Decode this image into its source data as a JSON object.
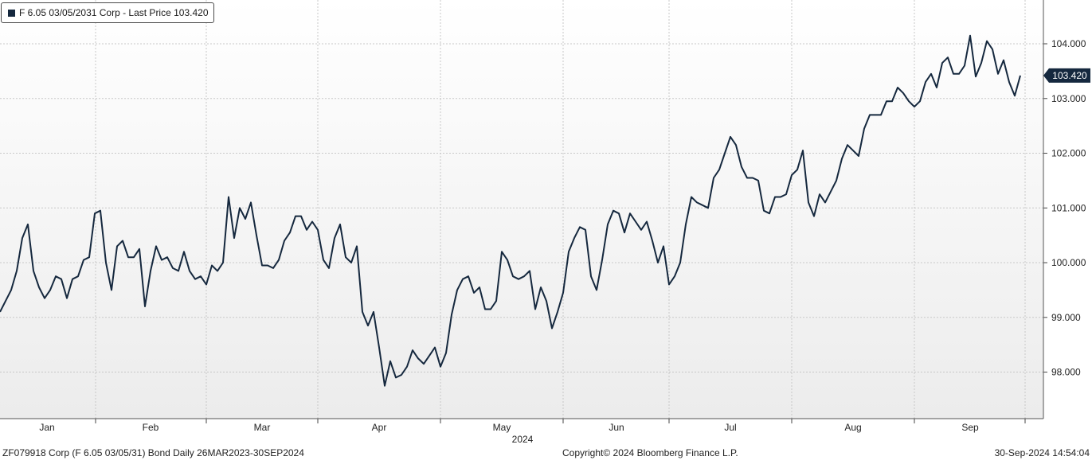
{
  "legend": {
    "label": "F 6.05 03/05/2031 Corp - Last Price 103.420",
    "color": "#15283e"
  },
  "footer": {
    "left": "ZF079918 Corp (F 6.05 03/05/31) Bond  Daily 26MAR2023-30SEP2024",
    "center": "Copyright© 2024 Bloomberg Finance L.P.",
    "right": "30-Sep-2024 14:54:04"
  },
  "chart_data": {
    "type": "line",
    "ylim": [
      97.15,
      104.8
    ],
    "y_ticks": [
      "98.000",
      "99.000",
      "100.000",
      "101.000",
      "102.000",
      "103.000",
      "104.000"
    ],
    "y_tick_values": [
      98,
      99,
      100,
      101,
      102,
      103,
      104
    ],
    "x_month_labels": [
      "Jan",
      "Feb",
      "Mar",
      "Apr",
      "May",
      "Jun",
      "Jul",
      "Aug",
      "Sep"
    ],
    "x_year_label": "2024",
    "grid": true,
    "last_value_label": "103.420",
    "last_value": 103.42,
    "series": [
      {
        "name": "F 6.05 03/05/2031 Corp - Last Price",
        "color": "#15283e",
        "values": [
          99.1,
          99.3,
          99.5,
          99.85,
          100.45,
          100.7,
          99.85,
          99.55,
          99.35,
          99.5,
          99.75,
          99.7,
          99.35,
          99.7,
          99.75,
          100.05,
          100.1,
          100.9,
          100.95,
          100.0,
          99.5,
          100.3,
          100.4,
          100.1,
          100.1,
          100.25,
          99.2,
          99.85,
          100.3,
          100.05,
          100.1,
          99.9,
          99.85,
          100.2,
          99.85,
          99.7,
          99.75,
          99.6,
          99.95,
          99.85,
          100.0,
          101.2,
          100.45,
          101.0,
          100.8,
          101.1,
          100.5,
          99.95,
          99.95,
          99.9,
          100.05,
          100.4,
          100.55,
          100.85,
          100.85,
          100.6,
          100.75,
          100.6,
          100.05,
          99.9,
          100.45,
          100.7,
          100.1,
          100.0,
          100.3,
          99.1,
          98.85,
          99.1,
          98.45,
          97.75,
          98.2,
          97.9,
          97.95,
          98.1,
          98.4,
          98.25,
          98.15,
          98.3,
          98.45,
          98.1,
          98.35,
          99.05,
          99.5,
          99.7,
          99.75,
          99.45,
          99.55,
          99.15,
          99.15,
          99.3,
          100.2,
          100.05,
          99.75,
          99.7,
          99.75,
          99.85,
          99.15,
          99.55,
          99.3,
          98.8,
          99.1,
          99.45,
          100.2,
          100.45,
          100.65,
          100.6,
          99.75,
          99.5,
          100.05,
          100.7,
          100.95,
          100.9,
          100.55,
          100.9,
          100.75,
          100.6,
          100.75,
          100.4,
          100.0,
          100.3,
          99.6,
          99.75,
          100.0,
          100.7,
          101.2,
          101.1,
          101.05,
          101.0,
          101.55,
          101.7,
          102.0,
          102.3,
          102.15,
          101.75,
          101.55,
          101.55,
          101.5,
          100.95,
          100.9,
          101.2,
          101.2,
          101.25,
          101.6,
          101.7,
          102.05,
          101.1,
          100.85,
          101.25,
          101.1,
          101.3,
          101.5,
          101.9,
          102.15,
          102.05,
          101.95,
          102.45,
          102.7,
          102.7,
          102.7,
          102.95,
          102.95,
          103.2,
          103.1,
          102.95,
          102.85,
          102.95,
          103.3,
          103.45,
          103.2,
          103.65,
          103.75,
          103.45,
          103.45,
          103.6,
          104.15,
          103.4,
          103.65,
          104.05,
          103.9,
          103.45,
          103.7,
          103.3,
          103.05,
          103.42
        ]
      }
    ]
  }
}
